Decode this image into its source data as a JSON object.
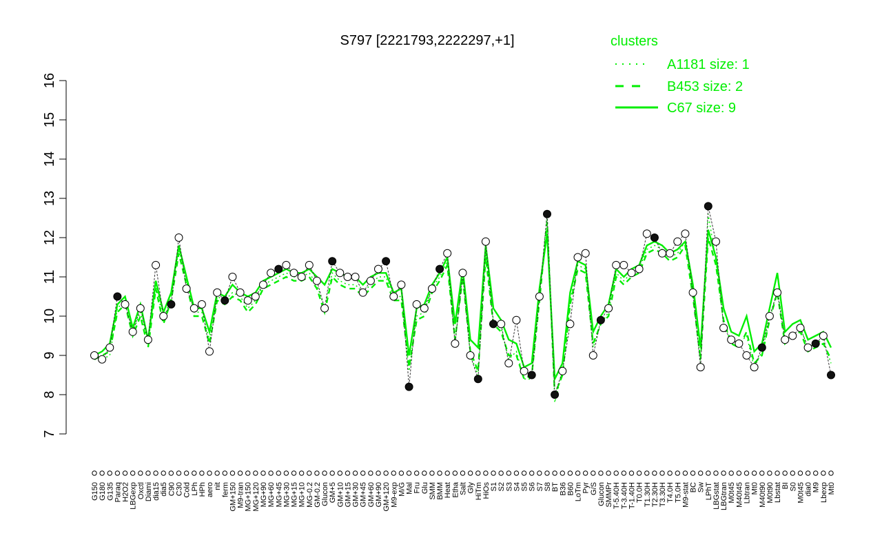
{
  "chart_data": {
    "type": "line",
    "title": "S797 [2221793,2222297,+1]",
    "xlabel": "",
    "ylabel": "",
    "ylim": [
      7,
      16
    ],
    "yticks": [
      7,
      8,
      9,
      10,
      11,
      12,
      13,
      14,
      15,
      16
    ],
    "grid": false,
    "legend_position": "top-right",
    "legend": {
      "title": "clusters",
      "color": "#00ee00",
      "entries": [
        {
          "label": "A1181 size: 1",
          "style": "dotted"
        },
        {
          "label": "B453 size: 2",
          "style": "dashed"
        },
        {
          "label": "C67 size: 9",
          "style": "solid"
        }
      ]
    },
    "x_tick_labels": [
      "G150",
      "G180",
      "G135",
      "Paraq",
      "H2O2",
      "LBGexp",
      "Oxctl",
      "Diami",
      "dia15",
      "dia5",
      "C90",
      "C30",
      "Cold",
      "LPh",
      "HPh",
      "aero",
      "nit",
      "ferm",
      "GM+150",
      "M9-tran",
      "MG+150",
      "MG+120",
      "MG+90",
      "MG+60",
      "MG+45",
      "MG+30",
      "MG+15",
      "MG+10",
      "MG-0.2",
      "GM-0.2",
      "Glucon",
      "GM+5",
      "GM+10",
      "GM+15",
      "GM+30",
      "GM+45",
      "GM+60",
      "GM+90",
      "GM+120",
      "M9-exp",
      "M/G",
      "Mal",
      "Fru",
      "Glu",
      "SMM",
      "BMM",
      "Heat",
      "Etha",
      "Salt",
      "Gly",
      "HiTm",
      "HiOs",
      "S1",
      "S2",
      "S3",
      "S4",
      "S5",
      "S6",
      "S7",
      "S8",
      "BT",
      "B36",
      "B60",
      "LoTm",
      "Pyr",
      "G/S",
      "Glucon",
      "SMMPr",
      "T-5.40H",
      "T-3.40H",
      "T-1.40H",
      "T0.0H",
      "T1.30H",
      "T2.30H",
      "T3.30H",
      "T4.0H",
      "T5.0H",
      "M9-stat",
      "BC",
      "Sw",
      "LPhT",
      "LBGstat",
      "LBGtran",
      "M0t45",
      "M40t45",
      "Lbtran",
      "Mt0",
      "M40t90",
      "M0t90",
      "Lbstat",
      "BI",
      "S0",
      "M0t45",
      "dia0",
      "M9",
      "Lbexp",
      "Mt0"
    ],
    "x": [
      1,
      2,
      3,
      4,
      5,
      6,
      7,
      8,
      9,
      10,
      11,
      12,
      13,
      14,
      15,
      16,
      17,
      18,
      19,
      20,
      21,
      22,
      23,
      24,
      25,
      26,
      27,
      28,
      29,
      30,
      31,
      32,
      33,
      34,
      35,
      36,
      37,
      38,
      39,
      40,
      41,
      42,
      43,
      44,
      45,
      46,
      47,
      48,
      49,
      50,
      51,
      52,
      53,
      54,
      55,
      56,
      57,
      58,
      59,
      60,
      61,
      62,
      63,
      64,
      65,
      66,
      67,
      68,
      69,
      70,
      71,
      72,
      73,
      74,
      75,
      76,
      77,
      78,
      79,
      80,
      81,
      82,
      83,
      84,
      85,
      86,
      87,
      88,
      89,
      90,
      91,
      92,
      93,
      94,
      95,
      96,
      97
    ],
    "series": [
      {
        "style": "solid",
        "values": [
          9.0,
          9.1,
          9.3,
          10.3,
          10.5,
          9.7,
          10.3,
          9.4,
          10.9,
          10.1,
          10.6,
          11.8,
          11.0,
          10.2,
          10.2,
          9.6,
          10.6,
          10.5,
          10.8,
          10.6,
          10.5,
          10.6,
          10.9,
          11.0,
          11.1,
          11.2,
          11.1,
          11.1,
          11.2,
          11.0,
          10.8,
          11.2,
          11.1,
          11.0,
          11.0,
          10.8,
          11.0,
          11.1,
          11.1,
          10.6,
          10.7,
          9.0,
          10.2,
          10.3,
          10.8,
          11.1,
          11.5,
          9.8,
          11.2,
          9.4,
          9.2,
          11.8,
          10.2,
          9.9,
          9.4,
          9.3,
          8.7,
          8.8,
          10.7,
          12.1,
          8.4,
          8.8,
          10.6,
          11.4,
          11.3,
          9.6,
          10.0,
          10.3,
          11.2,
          11.0,
          11.2,
          11.3,
          11.8,
          11.9,
          11.8,
          11.6,
          11.7,
          11.9,
          10.8,
          9.2,
          12.2,
          11.5,
          10.2,
          9.6,
          9.5,
          10.0,
          9.1,
          9.3,
          10.2,
          11.1,
          9.6,
          9.8,
          9.9,
          9.4,
          9.5,
          9.6,
          9.2
        ]
      },
      {
        "style": "dashed",
        "values": [
          8.9,
          9.0,
          9.1,
          10.1,
          10.3,
          9.5,
          10.0,
          9.2,
          10.7,
          9.8,
          10.4,
          11.6,
          10.8,
          10.0,
          10.0,
          9.3,
          10.4,
          10.3,
          10.5,
          10.4,
          10.1,
          10.3,
          10.7,
          10.8,
          10.9,
          11.0,
          10.9,
          10.9,
          11.0,
          10.7,
          10.1,
          11.0,
          10.8,
          10.7,
          10.7,
          10.5,
          10.7,
          10.9,
          10.9,
          10.4,
          10.4,
          8.7,
          9.9,
          10.0,
          10.6,
          10.9,
          11.3,
          9.4,
          11.0,
          9.1,
          8.6,
          11.5,
          9.8,
          9.6,
          9.0,
          9.0,
          8.4,
          8.5,
          10.4,
          12.4,
          8.0,
          8.5,
          10.3,
          11.2,
          11.1,
          9.3,
          9.8,
          10.0,
          11.0,
          10.8,
          11.0,
          11.1,
          11.6,
          11.7,
          11.6,
          11.4,
          11.5,
          11.8,
          10.5,
          8.9,
          12.0,
          11.3,
          9.9,
          9.3,
          9.2,
          9.6,
          8.8,
          9.0,
          9.9,
          10.6,
          9.3,
          9.5,
          9.6,
          9.1,
          9.2,
          9.3,
          8.9
        ]
      },
      {
        "style": "dotted",
        "values": [
          8.9,
          8.9,
          9.0,
          10.2,
          10.4,
          9.6,
          10.1,
          9.3,
          10.8,
          9.9,
          10.5,
          11.7,
          10.9,
          10.1,
          10.1,
          9.4,
          10.5,
          10.4,
          10.6,
          10.5,
          10.2,
          10.4,
          10.8,
          10.9,
          11.0,
          11.1,
          11.0,
          11.0,
          11.1,
          10.8,
          10.2,
          11.1,
          10.9,
          10.8,
          10.8,
          10.6,
          10.8,
          11.0,
          11.0,
          10.5,
          10.5,
          8.6,
          10.0,
          10.1,
          10.7,
          11.0,
          11.4,
          9.3,
          11.1,
          9.0,
          8.5,
          11.6,
          9.9,
          9.7,
          8.9,
          9.1,
          8.4,
          8.4,
          10.5,
          12.6,
          7.8,
          8.6,
          10.4,
          11.3,
          11.2,
          9.2,
          9.8,
          10.1,
          11.1,
          10.9,
          11.1,
          11.2,
          11.7,
          11.8,
          11.7,
          11.5,
          11.6,
          11.9,
          10.6,
          8.8,
          12.6,
          11.4,
          9.8,
          9.4,
          9.3,
          9.5,
          8.7,
          9.1,
          9.9,
          10.7,
          9.4,
          9.5,
          9.7,
          9.2,
          9.3,
          9.4,
          8.8
        ]
      }
    ],
    "points": {
      "style": "open-circle",
      "values": [
        9.0,
        8.9,
        9.2,
        10.5,
        10.3,
        9.6,
        10.2,
        9.4,
        11.3,
        10.0,
        10.3,
        12.0,
        10.7,
        10.2,
        10.3,
        9.1,
        10.6,
        10.4,
        11.0,
        10.6,
        10.4,
        10.5,
        10.8,
        11.1,
        11.2,
        11.3,
        11.1,
        11.0,
        11.3,
        10.9,
        10.2,
        11.4,
        11.1,
        11.0,
        11.0,
        10.6,
        10.9,
        11.2,
        11.4,
        10.5,
        10.8,
        8.2,
        10.3,
        10.2,
        10.7,
        11.2,
        11.6,
        9.3,
        11.1,
        9.0,
        8.4,
        11.9,
        9.8,
        9.8,
        8.8,
        9.9,
        8.6,
        8.5,
        10.5,
        12.6,
        8.0,
        8.6,
        9.8,
        11.5,
        11.6,
        9.0,
        9.9,
        10.2,
        11.3,
        11.3,
        11.1,
        11.2,
        12.1,
        12.0,
        11.6,
        11.6,
        11.9,
        12.1,
        10.6,
        8.7,
        12.8,
        11.9,
        9.7,
        9.4,
        9.3,
        9.0,
        8.7,
        9.2,
        10.0,
        10.6,
        9.4,
        9.5,
        9.7,
        9.2,
        9.3,
        9.5,
        8.5
      ]
    }
  }
}
